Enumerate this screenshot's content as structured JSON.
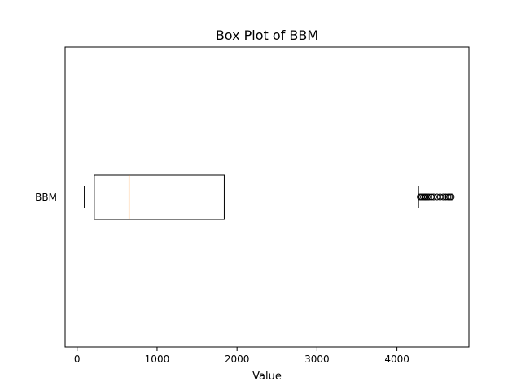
{
  "chart_data": {
    "type": "box",
    "title": "Box Plot of BBM",
    "xlabel": "Value",
    "ylabel": "",
    "orientation": "horizontal",
    "categories": [
      "BBM"
    ],
    "xlim": [
      -150,
      4900
    ],
    "xticks": [
      0,
      1000,
      2000,
      3000,
      4000
    ],
    "grid": false,
    "legend": "none",
    "boxes": [
      {
        "name": "BBM",
        "whisker_low": 90,
        "q1": 215,
        "median": 650,
        "q3": 1840,
        "whisker_high": 4270,
        "outliers": [
          4290,
          4310,
          4330,
          4350,
          4360,
          4380,
          4400,
          4430,
          4460,
          4500,
          4540,
          4580,
          4610,
          4640,
          4660,
          4680
        ]
      }
    ],
    "colors": {
      "box": "#000000",
      "median": "#ff7f0e",
      "whisker": "#000000",
      "outlier": "#000000"
    }
  }
}
